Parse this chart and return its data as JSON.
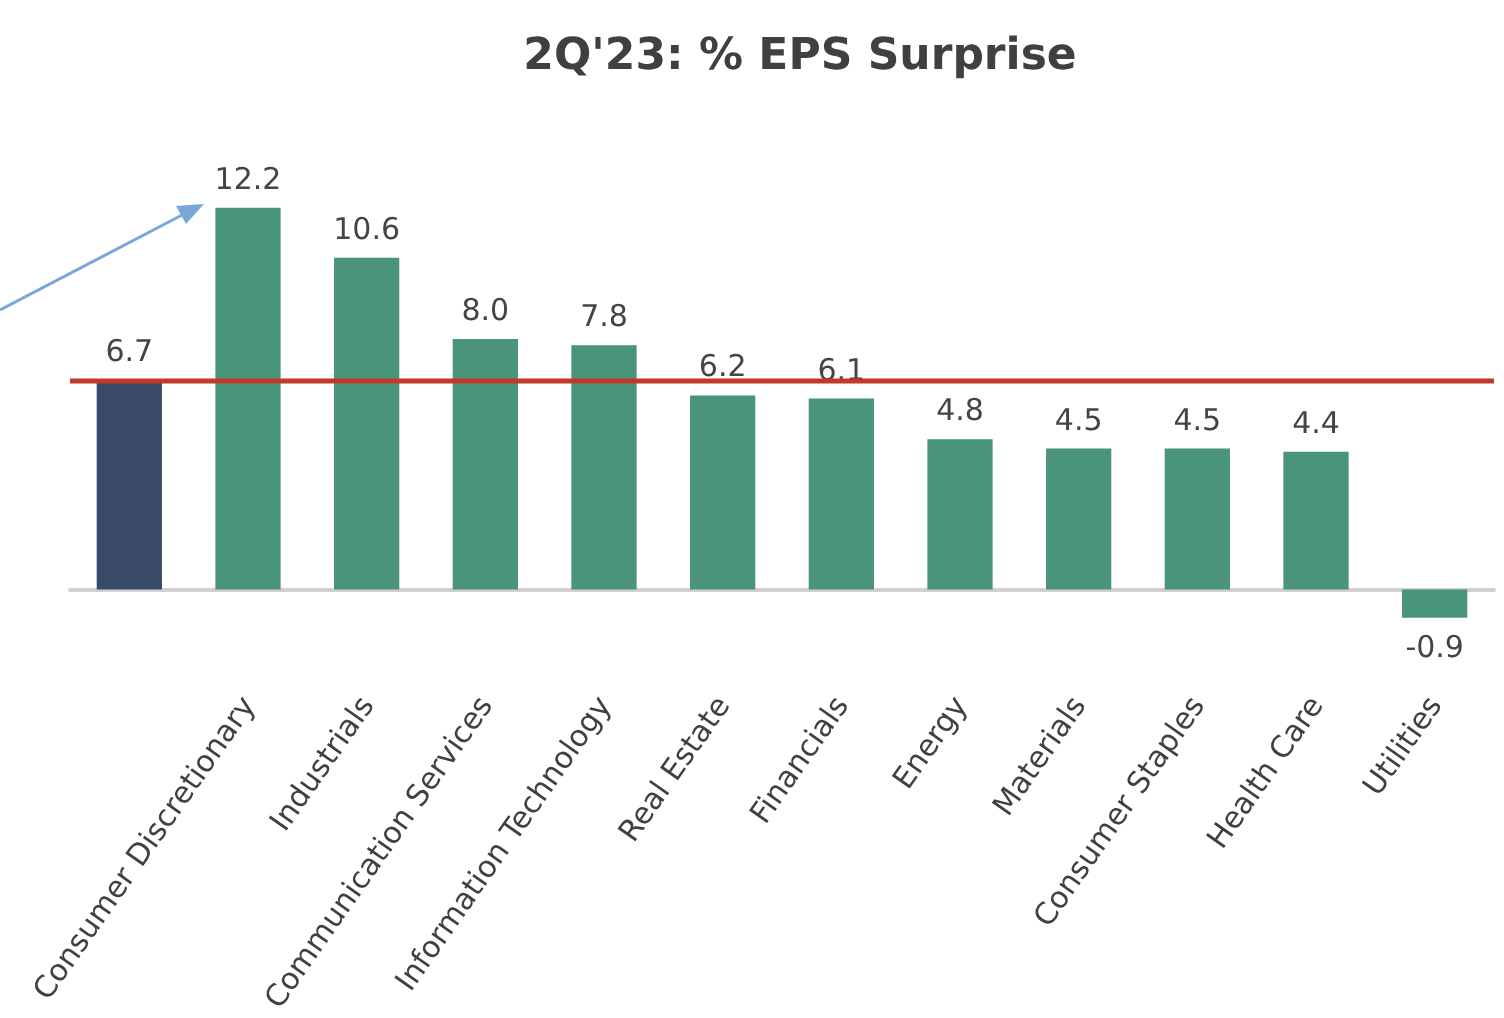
{
  "chart_data": {
    "type": "bar",
    "title": "2Q'23: % EPS Surprise",
    "categories": [
      null,
      "Consumer Discretionary",
      "Industrials",
      "Communication Services",
      "Information Technology",
      "Real Estate",
      "Financials",
      "Energy",
      "Materials",
      "Consumer Staples",
      "Health Care",
      "Utilities"
    ],
    "values": [
      6.7,
      12.2,
      10.6,
      8.0,
      7.8,
      6.2,
      6.1,
      4.8,
      4.5,
      4.5,
      4.4,
      -0.9
    ],
    "value_labels": [
      "6.7",
      "12.2",
      "10.6",
      "8.0",
      "7.8",
      "6.2",
      "6.1",
      "4.8",
      "4.5",
      "4.5",
      "4.4",
      "-0.9"
    ],
    "colors": [
      "#3a4a69",
      "#4a9479",
      "#4a9479",
      "#4a9479",
      "#4a9479",
      "#4a9479",
      "#4a9479",
      "#4a9479",
      "#4a9479",
      "#4a9479",
      "#4a9479",
      "#4a9479"
    ],
    "tick_labels": "x",
    "ref_lines": [
      {
        "axis": "y",
        "value": 6.7,
        "label": null,
        "color": "#c0392b"
      }
    ]
  }
}
